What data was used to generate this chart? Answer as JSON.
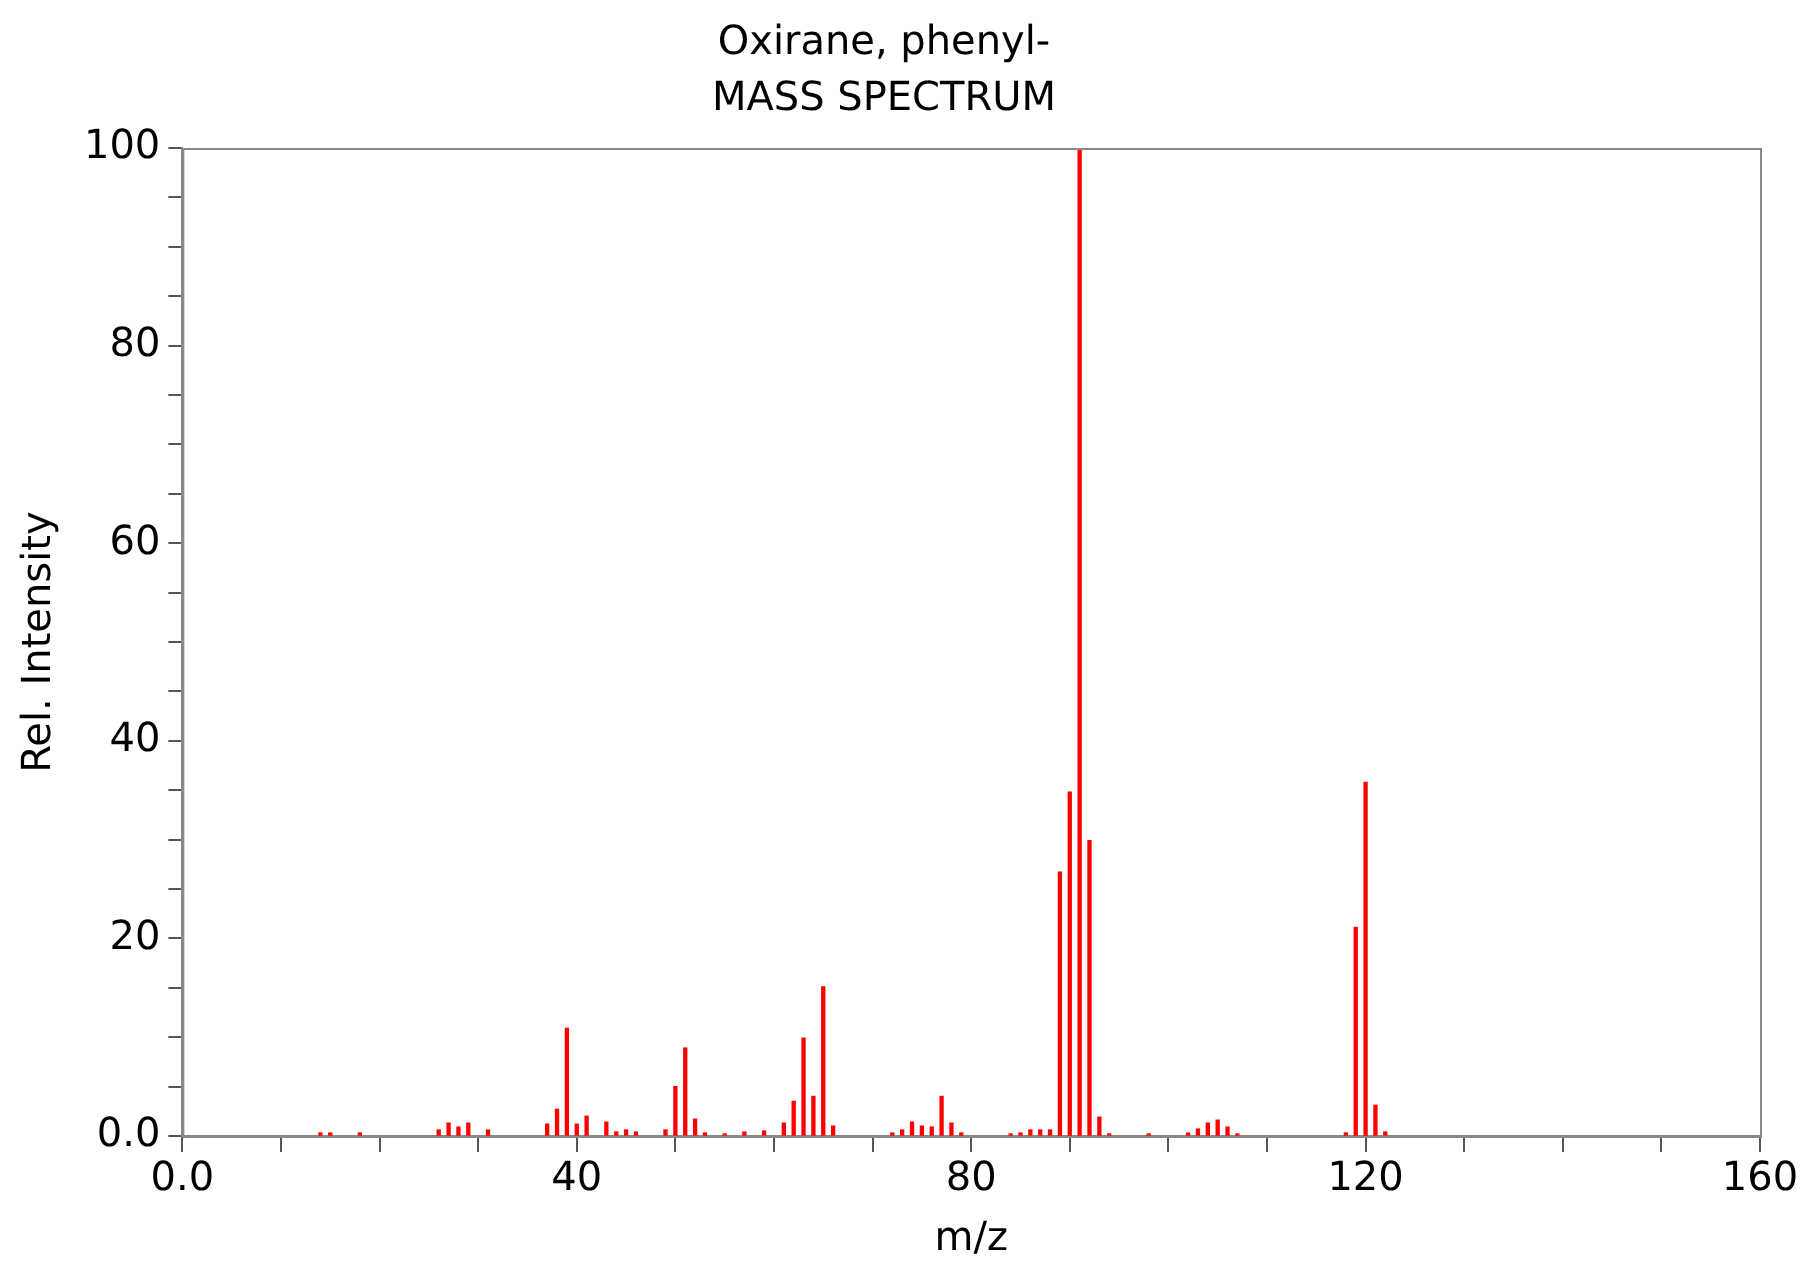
{
  "chart_data": {
    "type": "bar",
    "title": "Oxirane, phenyl-",
    "subtitle": "MASS SPECTRUM",
    "xlabel": "m/z",
    "ylabel": "Rel. Intensity",
    "x": [
      14,
      15,
      18,
      26,
      27,
      28,
      29,
      31,
      37,
      38,
      39,
      40,
      41,
      43,
      44,
      45,
      46,
      49,
      50,
      51,
      52,
      53,
      55,
      57,
      59,
      61,
      62,
      63,
      64,
      65,
      66,
      72,
      73,
      74,
      75,
      76,
      77,
      78,
      79,
      84,
      85,
      86,
      87,
      88,
      89,
      90,
      91,
      92,
      93,
      94,
      98,
      102,
      103,
      104,
      105,
      106,
      107,
      118,
      119,
      120,
      121,
      122
    ],
    "values": [
      0.3,
      0.3,
      0.3,
      0.6,
      1.3,
      0.9,
      1.3,
      0.6,
      1.2,
      2.7,
      10.9,
      1.2,
      2.0,
      1.4,
      0.4,
      0.6,
      0.4,
      0.6,
      5.0,
      8.9,
      1.7,
      0.3,
      0.2,
      0.4,
      0.5,
      1.3,
      3.5,
      9.9,
      4.0,
      15.1,
      1.0,
      0.3,
      0.6,
      1.4,
      1.0,
      0.9,
      4.0,
      1.3,
      0.3,
      0.2,
      0.3,
      0.6,
      0.6,
      0.6,
      26.7,
      34.8,
      100,
      29.9,
      1.9,
      0.2,
      0.2,
      0.3,
      0.7,
      1.3,
      1.6,
      0.9,
      0.2,
      0.3,
      21.1,
      35.8,
      3.1,
      0.4
    ],
    "color": "#ff0000",
    "xlim": [
      0,
      160
    ],
    "xticks": [
      {
        "value": 0,
        "label": "0.0"
      },
      {
        "value": 10,
        "label": null
      },
      {
        "value": 20,
        "label": null
      },
      {
        "value": 30,
        "label": null
      },
      40,
      {
        "value": 50,
        "label": null
      },
      {
        "value": 60,
        "label": null
      },
      {
        "value": 70,
        "label": null
      },
      80,
      {
        "value": 90,
        "label": null
      },
      {
        "value": 100,
        "label": null
      },
      {
        "value": 110,
        "label": null
      },
      120,
      {
        "value": 130,
        "label": null
      },
      {
        "value": 140,
        "label": null
      },
      {
        "value": 150,
        "label": null
      },
      160
    ],
    "ylim": [
      0,
      100
    ],
    "yticks": [
      {
        "value": 0,
        "label": "0.0"
      },
      {
        "value": 5,
        "label": null
      },
      {
        "value": 10,
        "label": null
      },
      {
        "value": 15,
        "label": null
      },
      20,
      {
        "value": 25,
        "label": null
      },
      {
        "value": 30,
        "label": null
      },
      {
        "value": 35,
        "label": null
      },
      40,
      {
        "value": 45,
        "label": null
      },
      {
        "value": 50,
        "label": null
      },
      {
        "value": 55,
        "label": null
      },
      60,
      {
        "value": 65,
        "label": null
      },
      {
        "value": 70,
        "label": null
      },
      {
        "value": 75,
        "label": null
      },
      80,
      {
        "value": 85,
        "label": null
      },
      {
        "value": 90,
        "label": null
      },
      {
        "value": 95,
        "label": null
      },
      100
    ],
    "grid": false,
    "legend": false
  }
}
